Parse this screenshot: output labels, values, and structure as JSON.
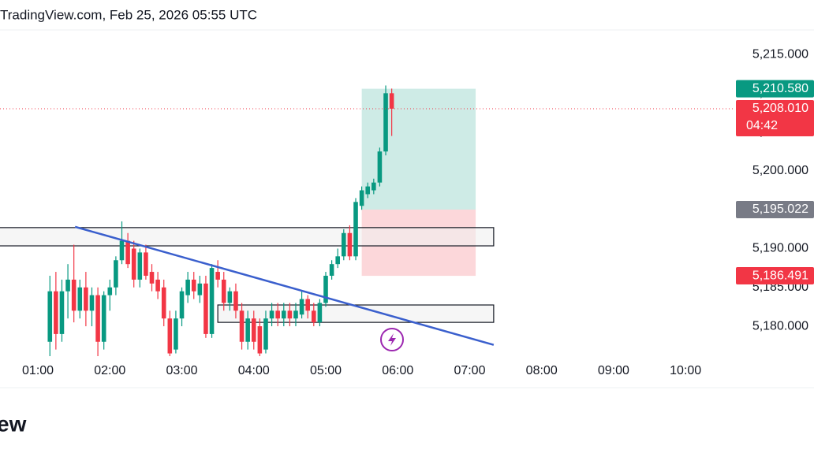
{
  "chart_data": {
    "type": "candlestick",
    "title": "TradingView.com, Feb 25, 2026 05:55 UTC",
    "brand": "ew",
    "up_color": "#089981",
    "down_color": "#f23645",
    "x": [
      70,
      75,
      80,
      85,
      90,
      95,
      100,
      105,
      110,
      115,
      120,
      125,
      130,
      135,
      140,
      145,
      150,
      155,
      160,
      165,
      170,
      175,
      180,
      185,
      190,
      195,
      200,
      205,
      210,
      215,
      220,
      225,
      230,
      235,
      240,
      245,
      250,
      255,
      260,
      265,
      270,
      275,
      280,
      285,
      290,
      295,
      300,
      305,
      310,
      315,
      320,
      325,
      330,
      335,
      340,
      345,
      350,
      355
    ],
    "open": [
      5178,
      5184.5,
      5179,
      5184.5,
      5186,
      5182,
      5185,
      5182,
      5184,
      5178,
      5184,
      5185,
      5188.5,
      5191,
      5190,
      5186,
      5189.5,
      5187,
      5186,
      5185,
      5181,
      5177,
      5181,
      5184,
      5186,
      5184,
      5185.5,
      5179,
      5187,
      5186,
      5183,
      5184.5,
      5182,
      5178,
      5181,
      5180,
      5177,
      5181,
      5182,
      5181,
      5182,
      5181,
      5181.5,
      5183.5,
      5182,
      5180.5,
      5183,
      5186.5,
      5188,
      5189,
      5192,
      5189,
      5195.5,
      5197,
      5197.5,
      5198.5,
      5202.5,
      5210
    ],
    "high": [
      5186.5,
      5187,
      5186,
      5188,
      5190.5,
      5186,
      5187,
      5185,
      5185,
      5184.5,
      5186,
      5189,
      5193.5,
      5192,
      5191,
      5190,
      5190.5,
      5188,
      5187,
      5186,
      5182,
      5182,
      5185,
      5187,
      5187,
      5186.5,
      5186.5,
      5188,
      5188.5,
      5187,
      5185,
      5185.5,
      5183,
      5182,
      5182,
      5181,
      5182,
      5183,
      5183,
      5183,
      5183,
      5183,
      5184.5,
      5184,
      5183,
      5183.5,
      5187,
      5188.5,
      5190,
      5192.5,
      5193,
      5196.5,
      5198,
      5198.5,
      5199,
      5203,
      5211,
      5210.6
    ],
    "low": [
      5176,
      5177,
      5178,
      5181,
      5180.5,
      5181,
      5180,
      5180,
      5176,
      5177,
      5182,
      5184,
      5188,
      5187.5,
      5185,
      5185,
      5186,
      5184.5,
      5183.5,
      5180,
      5176,
      5176.5,
      5180,
      5183,
      5183.5,
      5183,
      5178.5,
      5178.5,
      5185,
      5182,
      5182,
      5181,
      5177,
      5177,
      5177,
      5176,
      5176.5,
      5180,
      5180,
      5180,
      5180,
      5180,
      5181,
      5181,
      5180,
      5180,
      5182.5,
      5186,
      5187.5,
      5188.5,
      5188.5,
      5188.5,
      5195,
      5196.5,
      5197,
      5198,
      5202,
      5204.5
    ],
    "close": [
      5184.5,
      5179,
      5184.5,
      5186,
      5182,
      5185,
      5182,
      5184,
      5178,
      5184,
      5185,
      5188.5,
      5191,
      5188,
      5186,
      5189.5,
      5186.5,
      5185.5,
      5184.5,
      5181,
      5176.5,
      5181,
      5184.5,
      5186,
      5184.5,
      5185.5,
      5179,
      5187.5,
      5186,
      5183,
      5184.5,
      5182,
      5178,
      5181,
      5178,
      5176.5,
      5181,
      5182,
      5181,
      5182,
      5181,
      5182,
      5183.5,
      5182,
      5180.5,
      5183,
      5186.5,
      5188,
      5189,
      5192,
      5189,
      5196,
      5197.5,
      5198,
      5198.5,
      5202.5,
      5210,
      5208.01
    ],
    "xlim": [
      28.4,
      640
    ],
    "ylim": [
      5176.2,
      5218.2
    ],
    "xticks": [
      {
        "value": 60,
        "label": "01:00"
      },
      {
        "value": 120,
        "label": "02:00"
      },
      {
        "value": 180,
        "label": "03:00"
      },
      {
        "value": 240,
        "label": "04:00"
      },
      {
        "value": 300,
        "label": "05:00"
      },
      {
        "value": 360,
        "label": "06:00"
      },
      {
        "value": 420,
        "label": "07:00"
      },
      {
        "value": 480,
        "label": "08:00"
      },
      {
        "value": 540,
        "label": "09:00"
      },
      {
        "value": 600,
        "label": "10:00"
      }
    ],
    "yticks": [
      {
        "value": 5180,
        "label": "5,180.000"
      },
      {
        "value": 5185,
        "label": "5,185.000"
      },
      {
        "value": 5190,
        "label": "5,190.000"
      },
      {
        "value": 5195,
        "label": "5,195.000"
      },
      {
        "value": 5200,
        "label": "5,200.000"
      },
      {
        "value": 5205,
        "label": "5,205.000"
      },
      {
        "value": 5210,
        "label": "5,210.000"
      },
      {
        "value": 5215,
        "label": "5,215.000"
      }
    ],
    "grid": false,
    "zones": [
      {
        "x": [
          0,
          440
        ],
        "y": [
          5190.35,
          5192.7
        ]
      },
      {
        "x": [
          210,
          440
        ],
        "y": [
          5180.5,
          5182.74
        ]
      }
    ],
    "trendline": {
      "x": [
        91,
        440
      ],
      "y": [
        5192.8,
        5177.6
      ],
      "color": "#3a5fcd"
    },
    "position": {
      "x": [
        330,
        425
      ],
      "entry": 5195.022,
      "target": 5210.58,
      "stop": 5186.491
    },
    "price_labels": [
      {
        "value": 5210.58,
        "label": "5,210.580",
        "color": "#089981"
      },
      {
        "value": 5208.01,
        "label": "5,208.010",
        "color": "#f23645",
        "countdown": "04:42"
      },
      {
        "value": 5195.022,
        "label": "5,195.022",
        "color": "#787b86"
      },
      {
        "value": 5186.491,
        "label": "5,186.491",
        "color": "#f23645"
      }
    ]
  }
}
